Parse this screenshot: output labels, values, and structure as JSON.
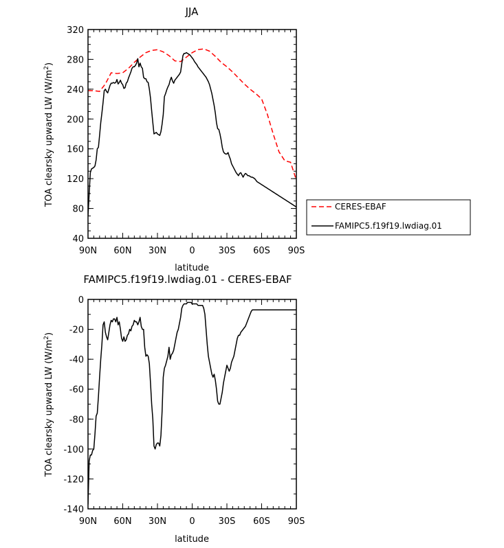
{
  "chart_data": [
    {
      "type": "line",
      "title": "JJA",
      "xlabel": "latitude",
      "ylabel": "TOA clearsky upward LW (W/m",
      "ylabel_sup": "2",
      "ylabel_close": ")",
      "x_ticks": [
        90,
        60,
        30,
        0,
        -30,
        -60,
        -90
      ],
      "x_tick_labels": [
        "90N",
        "60N",
        "30N",
        "0",
        "30S",
        "60S",
        "90S"
      ],
      "xlim": [
        90,
        -90
      ],
      "y_ticks": [
        40,
        80,
        120,
        160,
        200,
        240,
        280,
        320
      ],
      "y_tick_labels": [
        "40",
        "80",
        "120",
        "160",
        "200",
        "240",
        "280",
        "320"
      ],
      "ylim": [
        40,
        320
      ],
      "legend_position": "right",
      "series": [
        {
          "name": "CERES-EBAF",
          "color": "#ff0000",
          "dash": "dashed",
          "x": [
            90,
            85,
            80,
            75,
            70,
            65,
            60,
            55,
            50,
            45,
            40,
            35,
            30,
            25,
            20,
            15,
            10,
            5,
            0,
            -5,
            -10,
            -15,
            -20,
            -25,
            -30,
            -35,
            -40,
            -45,
            -50,
            -55,
            -60,
            -65,
            -70,
            -75,
            -80,
            -85,
            -90
          ],
          "y": [
            238,
            238,
            237,
            247,
            262,
            261,
            262,
            268,
            276,
            283,
            289,
            292,
            293,
            290,
            285,
            278,
            277,
            283,
            289,
            293,
            294,
            291,
            284,
            276,
            270,
            263,
            255,
            247,
            240,
            234,
            227,
            206,
            180,
            156,
            144,
            142,
            118
          ]
        },
        {
          "name": "FAMIPC5.f19f19.lwdiag.01",
          "color": "#000000",
          "dash": "solid",
          "x": [
            90,
            89,
            88,
            87,
            86,
            85,
            84,
            83,
            82,
            81,
            80,
            79,
            78,
            77,
            76,
            75,
            74,
            73,
            72,
            71,
            70,
            69,
            68,
            67,
            66,
            65,
            64,
            63,
            62,
            61,
            60,
            59,
            58,
            57,
            56,
            55,
            54,
            53,
            52,
            51,
            50,
            49,
            48,
            47,
            46,
            45,
            44,
            43,
            42,
            41,
            40,
            39,
            38,
            37,
            36,
            35,
            34,
            33,
            32,
            31,
            30,
            29,
            28,
            27,
            26,
            25,
            24,
            23,
            22,
            21,
            20,
            19,
            18,
            17,
            16,
            15,
            14,
            13,
            12,
            11,
            10,
            9,
            8,
            7,
            6,
            5,
            4,
            3,
            2,
            1,
            0,
            -1,
            -2,
            -3,
            -4,
            -5,
            -6,
            -7,
            -8,
            -9,
            -10,
            -11,
            -12,
            -13,
            -14,
            -15,
            -16,
            -17,
            -18,
            -19,
            -20,
            -21,
            -22,
            -23,
            -24,
            -25,
            -26,
            -27,
            -28,
            -29,
            -30,
            -31,
            -32,
            -33,
            -34,
            -35,
            -36,
            -37,
            -38,
            -39,
            -40,
            -41,
            -42,
            -43,
            -44,
            -45,
            -46,
            -47,
            -48,
            -49,
            -50,
            -51,
            -52,
            -53,
            -54,
            -55,
            -56,
            -57,
            -58,
            -59,
            -60,
            -61,
            -62,
            -63,
            -64,
            -65,
            -66,
            -67,
            -68,
            -69,
            -70,
            -71,
            -72,
            -73,
            -74,
            -75,
            -76,
            -77,
            -78,
            -79,
            -80,
            -81,
            -82,
            -83,
            -84,
            -85,
            -86,
            -87,
            -88,
            -89,
            -90
          ],
          "y": [
            70,
            100,
            128,
            133,
            134,
            135,
            137,
            145,
            160,
            162,
            178,
            195,
            208,
            222,
            238,
            240,
            237,
            235,
            240,
            245,
            248,
            248,
            249,
            248,
            249,
            253,
            247,
            249,
            252,
            248,
            246,
            241,
            242,
            248,
            250,
            255,
            259,
            263,
            268,
            270,
            270,
            272,
            275,
            281,
            270,
            275,
            270,
            268,
            256,
            254,
            254,
            250,
            249,
            240,
            228,
            211,
            195,
            180,
            181,
            182,
            180,
            179,
            178,
            183,
            193,
            206,
            230,
            234,
            239,
            243,
            246,
            252,
            256,
            251,
            248,
            252,
            254,
            256,
            258,
            260,
            263,
            274,
            285,
            288,
            288,
            289,
            288,
            287,
            286,
            284,
            282,
            280,
            277,
            275,
            273,
            270,
            268,
            266,
            264,
            262,
            260,
            258,
            256,
            253,
            250,
            246,
            240,
            234,
            226,
            218,
            208,
            195,
            187,
            186,
            180,
            172,
            162,
            156,
            154,
            153,
            153,
            155,
            150,
            146,
            140,
            137,
            134,
            131,
            128,
            126,
            124,
            127,
            128,
            125,
            122,
            125,
            127,
            126,
            124,
            124,
            123,
            122,
            122,
            121,
            120,
            118,
            116,
            115,
            114,
            113,
            112,
            111,
            110,
            109,
            108,
            107,
            106,
            105,
            104,
            103,
            102,
            101,
            100,
            99,
            98,
            97,
            96,
            95,
            94,
            93,
            92,
            91,
            90,
            89,
            88,
            87,
            86,
            85,
            84,
            83,
            82
          ]
        }
      ]
    },
    {
      "type": "line",
      "title": "FAMIPC5.f19f19.lwdiag.01 - CERES-EBAF",
      "xlabel": "latitude",
      "ylabel": "TOA clearsky upward LW (W/m",
      "ylabel_sup": "2",
      "ylabel_close": ")",
      "x_ticks": [
        90,
        60,
        30,
        0,
        -30,
        -60,
        -90
      ],
      "x_tick_labels": [
        "90N",
        "60N",
        "30N",
        "0",
        "30S",
        "60S",
        "90S"
      ],
      "xlim": [
        90,
        -90
      ],
      "y_ticks": [
        -140,
        -120,
        -100,
        -80,
        -60,
        -40,
        -20,
        0
      ],
      "y_tick_labels": [
        "-140",
        "-120",
        "-100",
        "-80",
        "-60",
        "-40",
        "-20",
        "0"
      ],
      "ylim": [
        -140,
        0
      ],
      "series": [
        {
          "color": "#000000",
          "dash": "solid",
          "x": [
            90,
            89,
            88,
            87,
            86,
            85,
            84,
            83,
            82,
            81,
            80,
            79,
            78,
            77,
            76,
            75,
            74,
            73,
            72,
            71,
            70,
            69,
            68,
            67,
            66,
            65,
            64,
            63,
            62,
            61,
            60,
            59,
            58,
            57,
            56,
            55,
            54,
            53,
            52,
            51,
            50,
            49,
            48,
            47,
            46,
            45,
            44,
            43,
            42,
            41,
            40,
            39,
            38,
            37,
            36,
            35,
            34,
            33,
            32,
            31,
            30,
            29,
            28,
            27,
            26,
            25,
            24,
            23,
            22,
            21,
            20,
            19,
            18,
            17,
            16,
            15,
            14,
            13,
            12,
            11,
            10,
            9,
            8,
            7,
            6,
            5,
            4,
            3,
            2,
            1,
            0,
            -1,
            -2,
            -3,
            -4,
            -5,
            -6,
            -7,
            -8,
            -9,
            -10,
            -11,
            -12,
            -13,
            -14,
            -15,
            -16,
            -17,
            -18,
            -19,
            -20,
            -21,
            -22,
            -23,
            -24,
            -25,
            -26,
            -27,
            -28,
            -29,
            -30,
            -31,
            -32,
            -33,
            -34,
            -35,
            -36,
            -37,
            -38,
            -39,
            -40,
            -41,
            -42,
            -43,
            -44,
            -45,
            -46,
            -47,
            -48,
            -49,
            -50,
            -51,
            -52,
            -53,
            -54,
            -55,
            -56,
            -57,
            -58,
            -59,
            -60,
            -61,
            -62,
            -63,
            -64,
            -65,
            -66,
            -67,
            -68,
            -69,
            -70,
            -71,
            -72,
            -73,
            -74,
            -75,
            -76,
            -77,
            -78,
            -79,
            -80,
            -81,
            -82,
            -83,
            -84,
            -85,
            -86,
            -87,
            -88,
            -89,
            -90
          ],
          "y": [
            -137,
            -108,
            -104,
            -104,
            -101,
            -100,
            -90,
            -78,
            -76,
            -65,
            -52,
            -40,
            -30,
            -17,
            -15,
            -22,
            -25,
            -27,
            -22,
            -17,
            -14,
            -15,
            -13,
            -13,
            -15,
            -12,
            -17,
            -15,
            -20,
            -26,
            -28,
            -25,
            -28,
            -27,
            -24,
            -23,
            -20,
            -21,
            -18,
            -17,
            -14,
            -15,
            -15,
            -17,
            -15,
            -12,
            -18,
            -20,
            -20,
            -32,
            -38,
            -37,
            -38,
            -43,
            -56,
            -70,
            -80,
            -98,
            -100,
            -97,
            -96,
            -96,
            -98,
            -91,
            -75,
            -52,
            -46,
            -44,
            -41,
            -38,
            -32,
            -40,
            -37,
            -36,
            -34,
            -30,
            -26,
            -22,
            -20,
            -16,
            -12,
            -6,
            -4,
            -3,
            -3,
            -3,
            -2,
            -2,
            -2,
            -2,
            -3,
            -3,
            -3,
            -3,
            -3,
            -4,
            -4,
            -4,
            -4,
            -4,
            -6,
            -10,
            -20,
            -30,
            -38,
            -42,
            -46,
            -50,
            -52,
            -50,
            -54,
            -60,
            -68,
            -70,
            -70,
            -66,
            -62,
            -56,
            -52,
            -48,
            -44,
            -46,
            -48,
            -46,
            -42,
            -40,
            -38,
            -34,
            -30,
            -26,
            -24,
            -24,
            -22,
            -21,
            -20,
            -19,
            -18,
            -16,
            -14,
            -12,
            -10,
            -8,
            -7,
            -7,
            -7,
            -7,
            -7,
            -7,
            -7,
            -7,
            -7,
            -7,
            -7,
            -7,
            -7,
            -7,
            -7,
            -7,
            -7,
            -7,
            -7,
            -7,
            -7,
            -7,
            -7,
            -7,
            -7,
            -7,
            -7,
            -7,
            -7,
            -7,
            -7,
            -7,
            -7,
            -7,
            -7,
            -7,
            -7,
            -7,
            -7
          ]
        }
      ]
    }
  ]
}
